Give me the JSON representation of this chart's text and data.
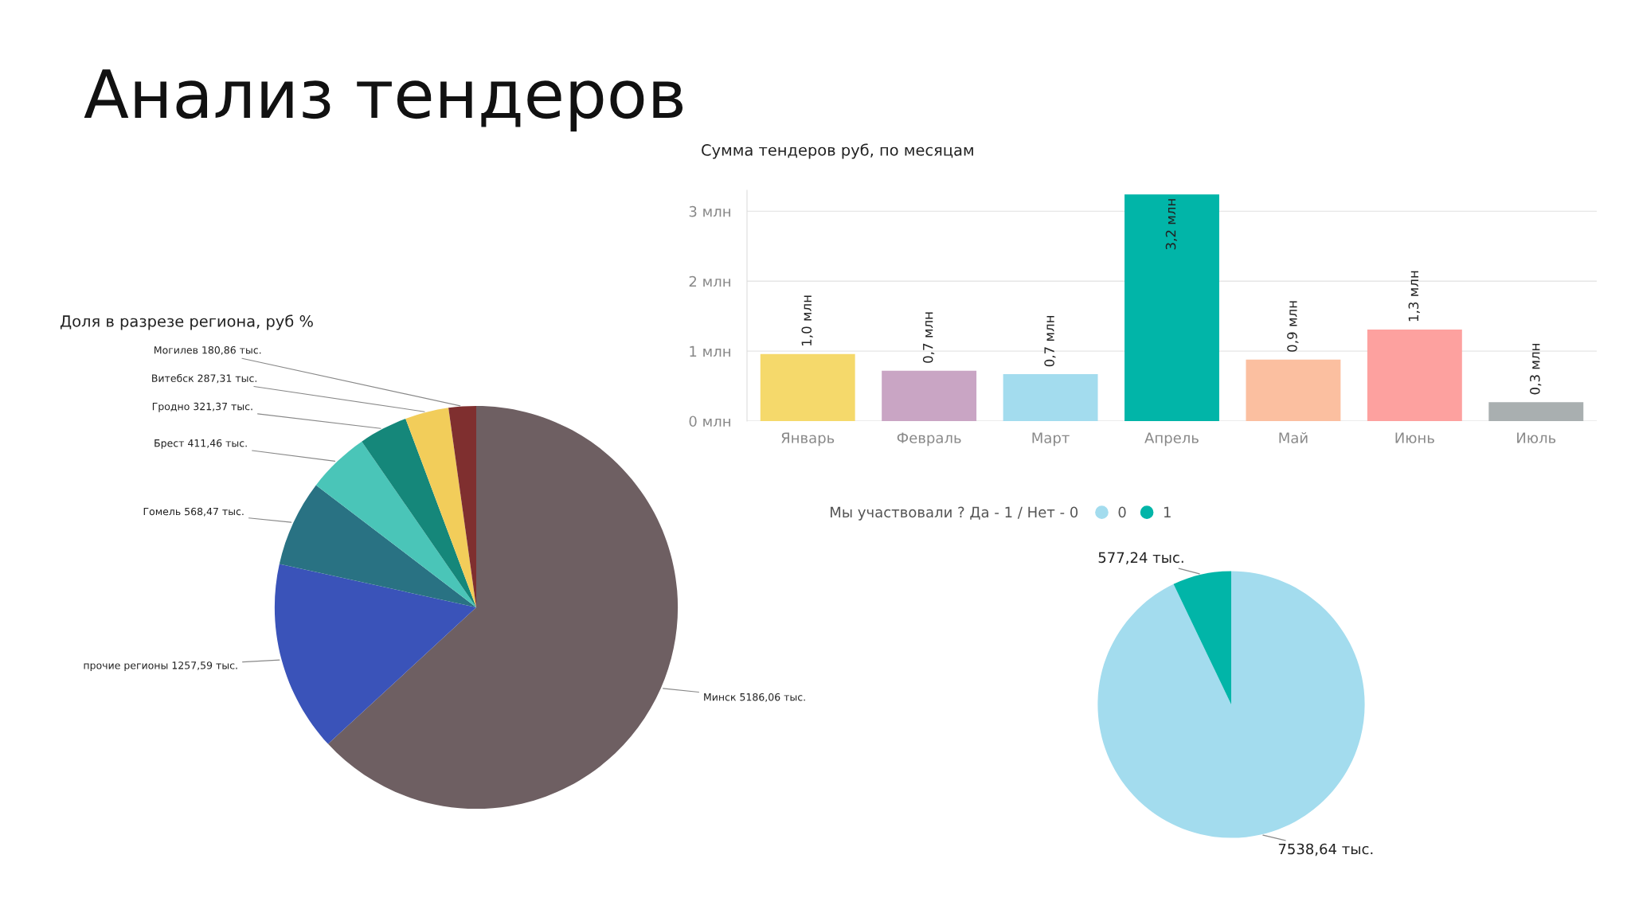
{
  "chart_data": [
    {
      "type": "other",
      "title": "Анализ тендеров"
    },
    {
      "type": "pie",
      "title": "Доля в разрезе региона, руб %",
      "categories": [
        "Минск",
        "прочие регионы",
        "Гомель",
        "Брест",
        "Гродно",
        "Витебск",
        "Могилев"
      ],
      "values": [
        5186.06,
        1257.59,
        568.47,
        411.46,
        321.37,
        287.31,
        180.86
      ],
      "colors": [
        "#6e5f62",
        "#3a53b9",
        "#297283",
        "#4ac5b8",
        "#15877a",
        "#f2cd5a",
        "#7f2f2f"
      ],
      "value_labels": [
        "5186,06 тыс.",
        "1257,59 тыс.",
        "568,47 тыс.",
        "411,46 тыс.",
        "321,37 тыс.",
        "287,31 тыс.",
        "180,86 тыс."
      ],
      "legend": false
    },
    {
      "type": "bar",
      "title": "Сумма тендеров руб, по месяцам",
      "categories": [
        "Январь",
        "Февраль",
        "Март",
        "Апрель",
        "Май",
        "Июнь",
        "Июль"
      ],
      "values": [
        0.96,
        0.72,
        0.67,
        3.24,
        0.88,
        1.31,
        0.27
      ],
      "colors": [
        "#f5d96b",
        "#c9a5c4",
        "#a3dcee",
        "#01b5a8",
        "#fbbfa0",
        "#fda19f",
        "#a9afb0"
      ],
      "value_labels": [
        "1,0 млн",
        "0,7 млн",
        "0,7 млн",
        "3,2 млн",
        "0,9 млн",
        "1,3 млн",
        "0,3 млн"
      ],
      "ylim": [
        0,
        3.3
      ],
      "yticks": [
        {
          "value": 0,
          "label": "0 млн"
        },
        {
          "value": 1,
          "label": "1 млн"
        },
        {
          "value": 2,
          "label": "2 млн"
        },
        {
          "value": 3,
          "label": "3 млн"
        }
      ],
      "grid": "y",
      "legend": false
    },
    {
      "type": "pie",
      "legend_title": "Мы участвовали ? Да - 1 / Нет - 0",
      "categories": [
        "0",
        "1"
      ],
      "values": [
        7538.64,
        577.24
      ],
      "colors": [
        "#a3dcee",
        "#01b5a8"
      ],
      "value_labels": [
        "7538,64 тыс.",
        "577,24 тыс."
      ],
      "legend": "top left"
    }
  ]
}
